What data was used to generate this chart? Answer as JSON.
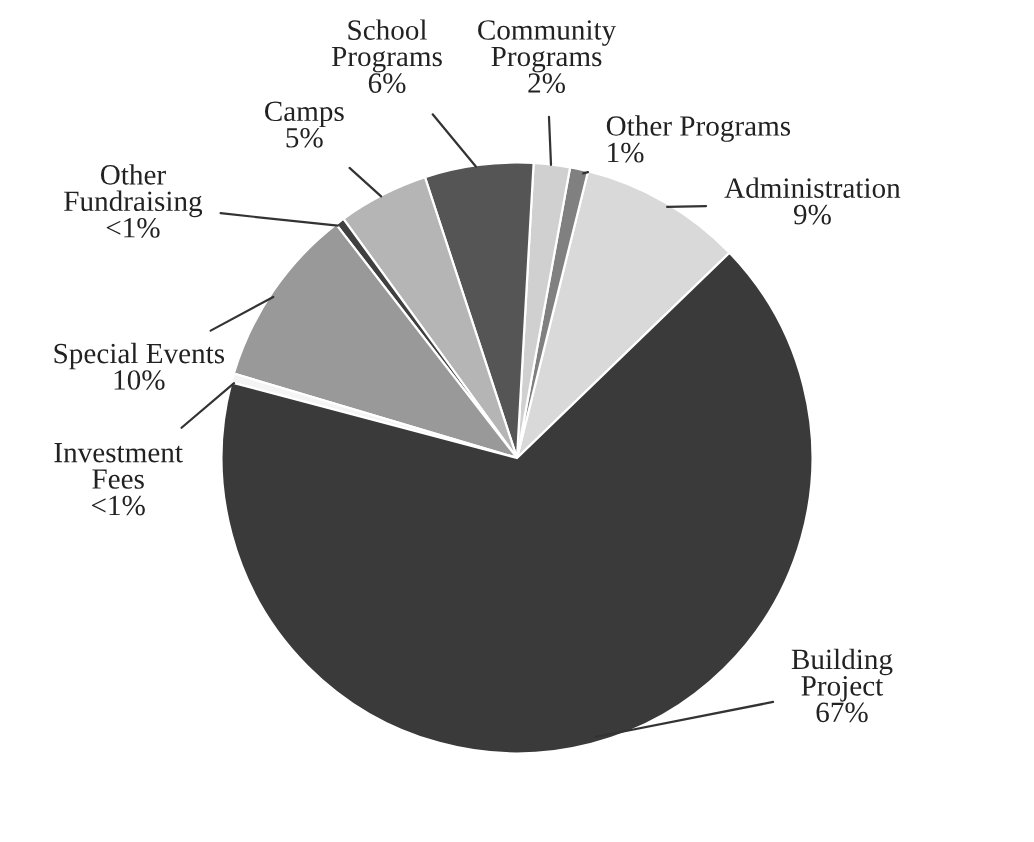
{
  "chart_data": {
    "type": "pie",
    "categories": [
      "Administration",
      "Other Programs",
      "Community\nPrograms",
      "School\nPrograms",
      "Camps",
      "Other\nFundraising",
      "Special Events",
      "Investment\nFees",
      "Building\nProject"
    ],
    "values": [
      9,
      1,
      2,
      6,
      5,
      0.5,
      10,
      0.5,
      67
    ],
    "value_labels": [
      "9%",
      "1%",
      "2%",
      "6%",
      "5%",
      "<1%",
      "10%",
      "<1%",
      "67%"
    ],
    "colors": [
      "#d9d9d9",
      "#808080",
      "#d0d0d0",
      "#555555",
      "#b5b5b5",
      "#404040",
      "#999999",
      "#f4f4f4",
      "#3a3a3a"
    ]
  }
}
